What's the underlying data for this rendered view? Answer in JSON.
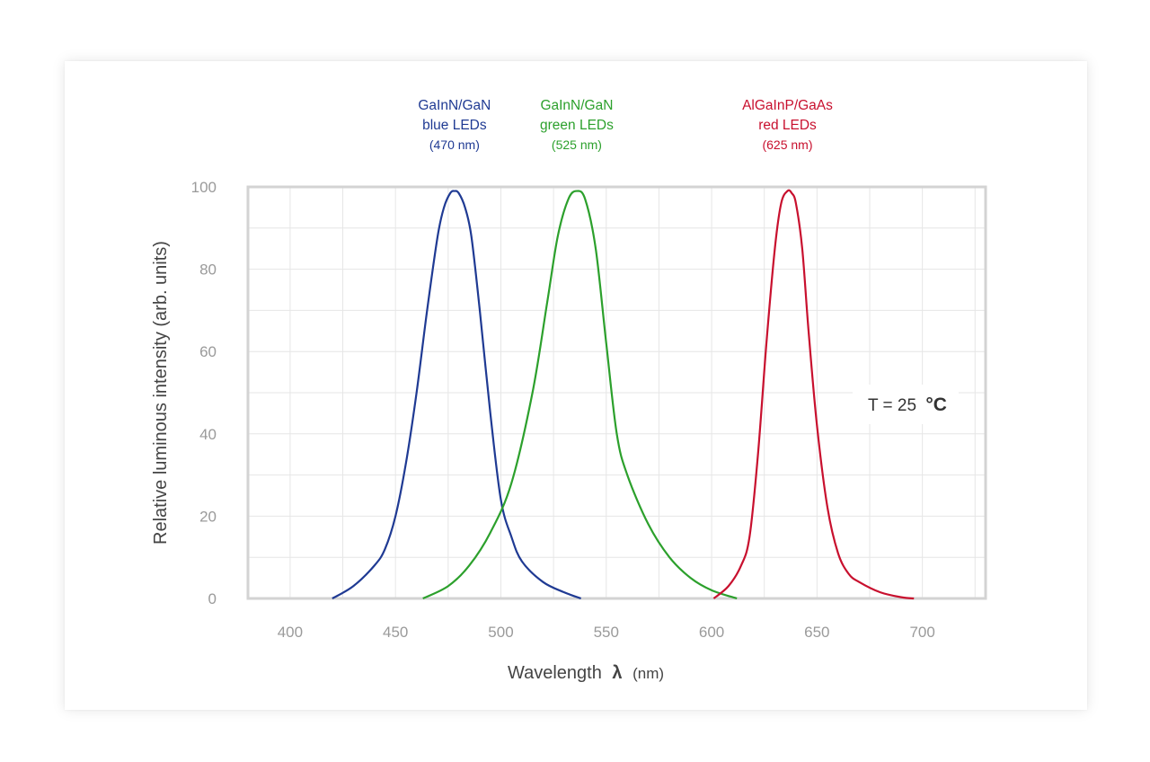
{
  "chart_data": {
    "type": "line",
    "xlabel": "Wavelength",
    "xlabel_symbol": "λ",
    "xlabel_unit": "(nm)",
    "ylabel": "Relative luminous intensity  (arb. units)",
    "xlim": [
      380,
      730
    ],
    "ylim": [
      0,
      100
    ],
    "x_ticks": [
      400,
      450,
      500,
      550,
      600,
      650,
      700
    ],
    "y_ticks": [
      0,
      20,
      40,
      60,
      80,
      100
    ],
    "grid": true,
    "annotation": {
      "prefix": "T = 25",
      "unit": "°C"
    },
    "series": [
      {
        "name": "GaInN/GaN blue LEDs (470 nm)",
        "label_lines": [
          "GaInN/GaN",
          "blue LEDs",
          "(470 nm)"
        ],
        "color": "#1f3a93",
        "x": [
          420,
          430,
          440,
          445,
          450,
          455,
          460,
          465,
          470,
          473,
          476,
          478,
          480,
          483,
          486,
          490,
          495,
          500,
          505,
          510,
          520,
          530,
          538
        ],
        "y": [
          0,
          3,
          8,
          12,
          20,
          33,
          50,
          70,
          88,
          95,
          98.5,
          99,
          98.5,
          95,
          88,
          70,
          45,
          24,
          15,
          9,
          4,
          1.5,
          0
        ]
      },
      {
        "name": "GaInN/GaN green LEDs (525 nm)",
        "label_lines": [
          "GaInN/GaN",
          "green LEDs",
          "(525 nm)"
        ],
        "color": "#2ca02c",
        "x": [
          463,
          475,
          485,
          495,
          505,
          515,
          522,
          527,
          532,
          536,
          540,
          545,
          550,
          555,
          560,
          570,
          580,
          590,
          600,
          612
        ],
        "y": [
          0,
          3,
          8,
          16,
          28,
          50,
          72,
          88,
          97,
          99,
          97,
          85,
          62,
          40,
          30,
          18,
          10,
          5,
          2,
          0
        ]
      },
      {
        "name": "AlGaInP/GaAs red LEDs (625 nm)",
        "label_lines": [
          "AlGaInP/GaAs",
          "red LEDs",
          "(625 nm)"
        ],
        "color": "#c8102e",
        "x": [
          601,
          608,
          614,
          618,
          622,
          626,
          630,
          633,
          636,
          638,
          640,
          643,
          646,
          650,
          655,
          660,
          665,
          670,
          680,
          690,
          696
        ],
        "y": [
          0,
          3,
          8,
          15,
          35,
          62,
          85,
          96,
          99,
          98.5,
          96,
          85,
          65,
          42,
          22,
          11,
          6,
          4,
          1.5,
          0.3,
          0
        ]
      }
    ]
  }
}
